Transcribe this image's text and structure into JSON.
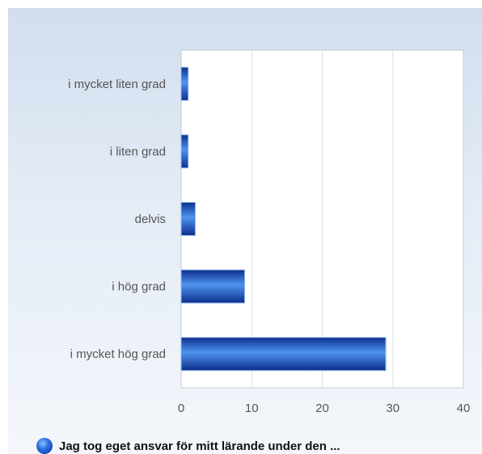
{
  "chart_data": {
    "type": "bar",
    "orientation": "horizontal",
    "categories": [
      "i mycket liten grad",
      "i liten grad",
      "delvis",
      "i hög grad",
      "i mycket hög grad"
    ],
    "series": [
      {
        "name": "Jag tog eget ansvar för mitt lärande under den ...",
        "values": [
          1,
          1,
          2,
          9,
          29
        ]
      }
    ],
    "xlim": [
      0,
      40
    ],
    "x_ticks": [
      "0",
      "10",
      "20",
      "30",
      "40"
    ],
    "grid": true,
    "legend_position": "bottom-left",
    "colors": {
      "bar_dark": "#0b2f8a",
      "bar_light": "#4f93f0",
      "grid": "#dde3ea",
      "plot_bg": "#ffffff"
    }
  }
}
